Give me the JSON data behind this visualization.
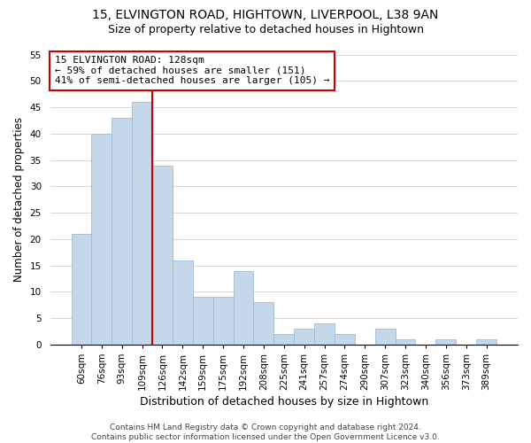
{
  "title1": "15, ELVINGTON ROAD, HIGHTOWN, LIVERPOOL, L38 9AN",
  "title2": "Size of property relative to detached houses in Hightown",
  "xlabel": "Distribution of detached houses by size in Hightown",
  "ylabel": "Number of detached properties",
  "bar_labels": [
    "60sqm",
    "76sqm",
    "93sqm",
    "109sqm",
    "126sqm",
    "142sqm",
    "159sqm",
    "175sqm",
    "192sqm",
    "208sqm",
    "225sqm",
    "241sqm",
    "257sqm",
    "274sqm",
    "290sqm",
    "307sqm",
    "323sqm",
    "340sqm",
    "356sqm",
    "373sqm",
    "389sqm"
  ],
  "bar_values": [
    21,
    40,
    43,
    46,
    34,
    16,
    9,
    9,
    14,
    8,
    2,
    3,
    4,
    2,
    0,
    3,
    1,
    0,
    1,
    0,
    1
  ],
  "bar_color": "#c5d8ea",
  "bar_edge_color": "#9bbcd4",
  "property_line_index": 4,
  "property_line_color": "#cc0000",
  "annotation_line1": "15 ELVINGTON ROAD: 128sqm",
  "annotation_line2": "← 59% of detached houses are smaller (151)",
  "annotation_line3": "41% of semi-detached houses are larger (105) →",
  "annotation_box_color": "#ffffff",
  "annotation_box_edge_color": "#cc0000",
  "ylim": [
    0,
    55
  ],
  "yticks": [
    0,
    5,
    10,
    15,
    20,
    25,
    30,
    35,
    40,
    45,
    50,
    55
  ],
  "footer1": "Contains HM Land Registry data © Crown copyright and database right 2024.",
  "footer2": "Contains public sector information licensed under the Open Government Licence v3.0.",
  "title1_fontsize": 10,
  "title2_fontsize": 9,
  "xlabel_fontsize": 9,
  "ylabel_fontsize": 8.5,
  "tick_fontsize": 7.5,
  "footer_fontsize": 6.5,
  "annotation_fontsize": 8,
  "grid_color": "#d0d8e0"
}
